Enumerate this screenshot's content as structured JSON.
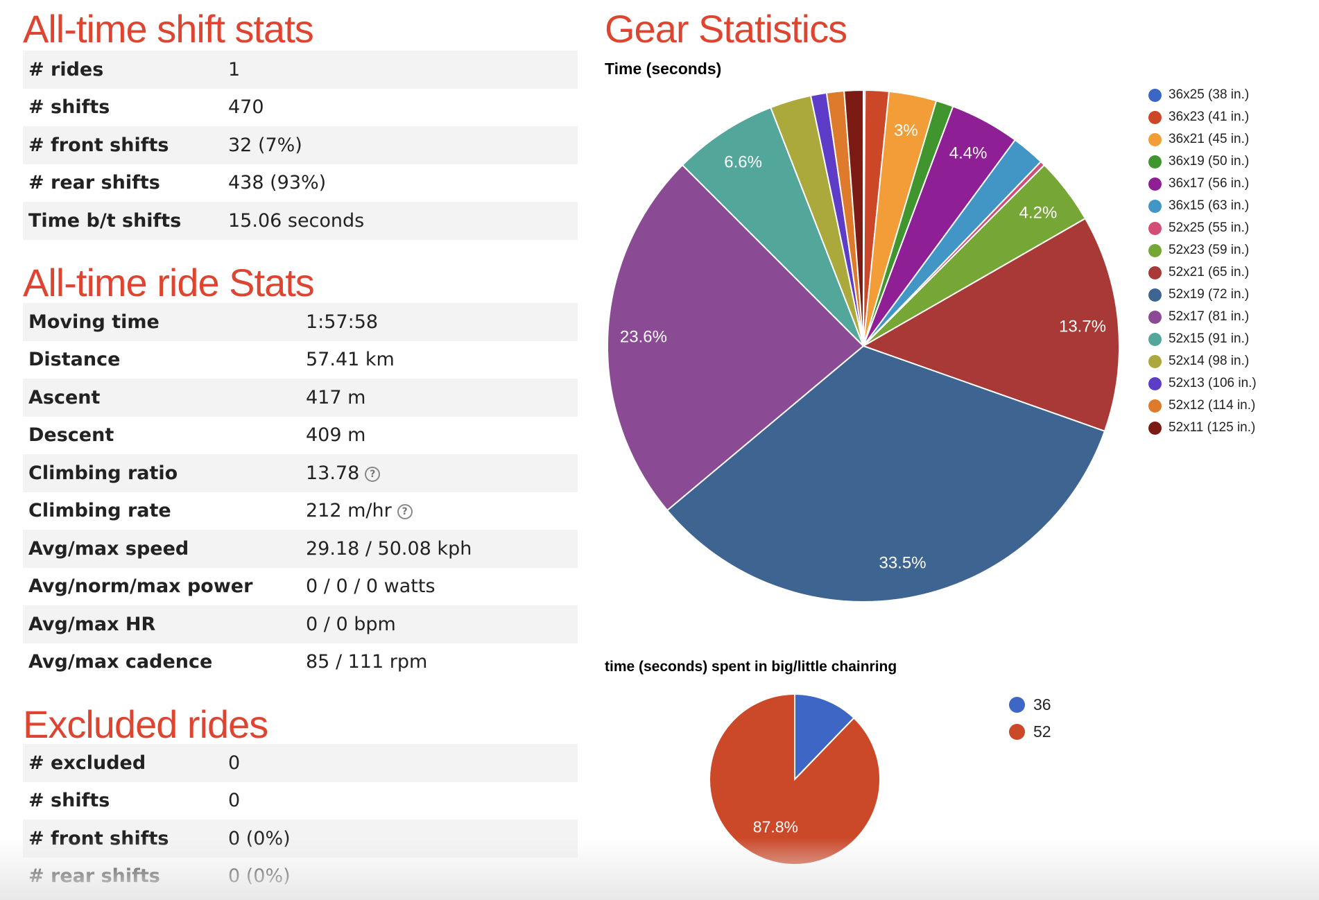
{
  "shift_stats": {
    "title": "All-time shift stats",
    "rows": [
      {
        "label": "# rides",
        "value": "1"
      },
      {
        "label": "# shifts",
        "value": "470"
      },
      {
        "label": "# front shifts",
        "value": "32 (7%)"
      },
      {
        "label": "# rear shifts",
        "value": "438 (93%)"
      },
      {
        "label": "Time b/t shifts",
        "value": "15.06 seconds"
      }
    ]
  },
  "ride_stats": {
    "title": "All-time ride Stats",
    "rows": [
      {
        "label": "Moving time",
        "value": "1:57:58"
      },
      {
        "label": "Distance",
        "value": "57.41 km"
      },
      {
        "label": "Ascent",
        "value": "417 m"
      },
      {
        "label": "Descent",
        "value": "409 m"
      },
      {
        "label": "Climbing ratio",
        "value": "13.78",
        "help": "?"
      },
      {
        "label": "Climbing rate",
        "value": "212 m/hr",
        "help": "?"
      },
      {
        "label": "Avg/max speed",
        "value": "29.18 / 50.08 kph"
      },
      {
        "label": "Avg/norm/max power",
        "value": "0 / 0 / 0 watts"
      },
      {
        "label": "Avg/max HR",
        "value": "0 / 0 bpm"
      },
      {
        "label": "Avg/max cadence",
        "value": "85 / 111 rpm"
      }
    ]
  },
  "excluded": {
    "title": "Excluded rides",
    "rows": [
      {
        "label": "# excluded",
        "value": "0"
      },
      {
        "label": "# shifts",
        "value": "0"
      },
      {
        "label": "# front shifts",
        "value": "0 (0%)"
      },
      {
        "label": "# rear shifts",
        "value": "0 (0%)"
      }
    ]
  },
  "gear_title": "Gear Statistics",
  "chart_data": [
    {
      "type": "pie",
      "title": "Time (seconds)",
      "legend": "right",
      "categories": [
        "36x25 (38 in.)",
        "36x23 (41 in.)",
        "36x21 (45 in.)",
        "36x19 (50 in.)",
        "36x17 (56 in.)",
        "36x15 (63 in.)",
        "52x25 (55 in.)",
        "52x23 (59 in.)",
        "52x21 (65 in.)",
        "52x19 (72 in.)",
        "52x17 (81 in.)",
        "52x15 (91 in.)",
        "52x14 (98 in.)",
        "52x13 (106 in.)",
        "52x12 (114 in.)",
        "52x11 (125 in.)"
      ],
      "values": [
        0.1,
        1.5,
        3.0,
        1.1,
        4.4,
        2.1,
        0.3,
        4.2,
        13.7,
        33.5,
        23.6,
        6.6,
        2.6,
        1.0,
        1.1,
        1.2
      ],
      "labels": [
        "",
        "",
        "3%",
        "",
        "4.4%",
        "",
        "",
        "4.2%",
        "13.7%",
        "33.5%",
        "23.6%",
        "6.6%",
        "",
        "",
        "",
        ""
      ],
      "colors": [
        "#3b66c6",
        "#cc4628",
        "#f29d38",
        "#41952f",
        "#8e1f95",
        "#4196c6",
        "#d44d76",
        "#76a736",
        "#a93936",
        "#3e6491",
        "#8a4b94",
        "#52a69a",
        "#aba93b",
        "#5d3dc7",
        "#dd7a2c",
        "#7c1b14"
      ]
    },
    {
      "type": "pie",
      "title": "time (seconds) spent in big/little chainring",
      "legend": "right",
      "categories": [
        "36",
        "52"
      ],
      "values": [
        12.2,
        87.8
      ],
      "labels": [
        "",
        "87.8%"
      ],
      "colors": [
        "#3e67c5",
        "#cb4829"
      ]
    }
  ]
}
